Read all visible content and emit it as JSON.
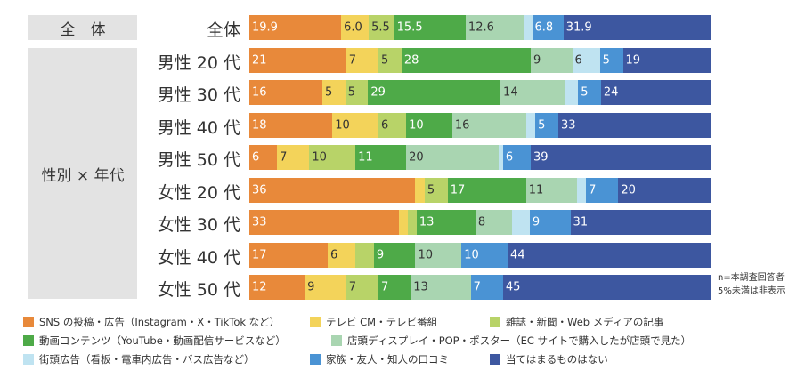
{
  "chart_data": {
    "type": "bar",
    "orientation": "horizontal",
    "stacked": "100%",
    "groups": [
      {
        "label": "全　体",
        "rows": [
          0
        ]
      },
      {
        "label": "性別 × 年代",
        "rows": [
          1,
          2,
          3,
          4,
          5,
          6,
          7,
          8
        ]
      }
    ],
    "categories": [
      "全体",
      "男性 20 代",
      "男性 30 代",
      "男性 40 代",
      "男性 50 代",
      "女性 20 代",
      "女性 30 代",
      "女性 40 代",
      "女性 50 代"
    ],
    "series": [
      {
        "name": "SNS の投稿・広告（Instagram・X・TikTok など）",
        "color": "#e8893a",
        "values": [
          19.9,
          21,
          16,
          18,
          6,
          36,
          33,
          17,
          12
        ],
        "labels": [
          "19.9",
          "21",
          "16",
          "18",
          "6",
          "36",
          "33",
          "17",
          "12"
        ]
      },
      {
        "name": "テレビ CM・テレビ番組",
        "color": "#f3d35a",
        "values": [
          6.0,
          7,
          5,
          10,
          7,
          2,
          2,
          6,
          9
        ],
        "labels": [
          "6.0",
          "7",
          "5",
          "10",
          "7",
          "",
          "",
          "6",
          "9"
        ]
      },
      {
        "name": "雑誌・新聞・Web メディアの記事",
        "color": "#b8d368",
        "values": [
          5.5,
          5,
          5,
          6,
          10,
          5,
          2,
          4,
          7
        ],
        "labels": [
          "5.5",
          "5",
          "5",
          "6",
          "10",
          "5",
          "",
          "",
          "7"
        ]
      },
      {
        "name": "動画コンテンツ（YouTube・動画配信サービスなど）",
        "color": "#4eaa48",
        "values": [
          15.5,
          28,
          29,
          10,
          11,
          17,
          13,
          9,
          7
        ],
        "labels": [
          "15.5",
          "28",
          "29",
          "10",
          "11",
          "17",
          "13",
          "9",
          "7"
        ]
      },
      {
        "name": "店頭ディスプレイ・POP・ポスター（EC サイトで購入したが店頭で見た）",
        "color": "#a9d5b1",
        "values": [
          12.6,
          9,
          14,
          16,
          20,
          11,
          8,
          10,
          13
        ],
        "labels": [
          "12.6",
          "9",
          "14",
          "16",
          "20",
          "11",
          "8",
          "10",
          "13"
        ]
      },
      {
        "name": "街頭広告（看板・電車内広告・バス広告など）",
        "color": "#bfe3f1",
        "values": [
          1.8,
          6,
          3,
          2,
          1,
          2,
          4,
          0,
          0
        ],
        "labels": [
          "",
          "6",
          "",
          "",
          "",
          "",
          "",
          "",
          ""
        ]
      },
      {
        "name": "家族・友人・知人の口コミ",
        "color": "#4a93d4",
        "values": [
          6.8,
          5,
          5,
          5,
          6,
          7,
          9,
          10,
          7
        ],
        "labels": [
          "6.8",
          "5",
          "5",
          "5",
          "6",
          "7",
          "9",
          "10",
          "7"
        ]
      },
      {
        "name": "当てはまるものはない",
        "color": "#3d57a0",
        "values": [
          31.9,
          19,
          24,
          33,
          39,
          20,
          31,
          44,
          45
        ],
        "labels": [
          "31.9",
          "19",
          "24",
          "33",
          "39",
          "20",
          "31",
          "44",
          "45"
        ]
      }
    ],
    "unit": "%",
    "xlim": [
      0,
      100
    ]
  },
  "note": {
    "line1": "n=本調査回答者",
    "line2": "5%未満は非表示"
  }
}
